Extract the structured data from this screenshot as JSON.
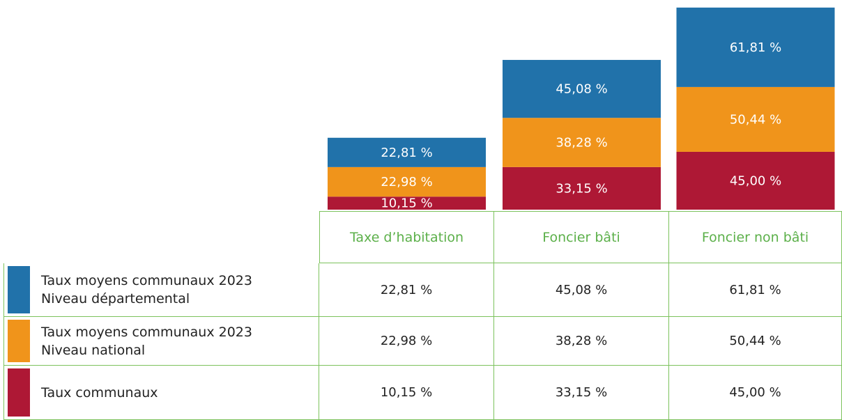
{
  "chart_data": {
    "type": "stacked-bar",
    "categories": [
      "Taxe d’habitation",
      "Foncier bâti",
      "Foncier non bâti"
    ],
    "series": [
      {
        "name": "Taux moyens communaux 2023\nNiveau départemental",
        "color": "#2172aa",
        "values": [
          22.81,
          45.08,
          61.81
        ],
        "value_labels": [
          "22,81 %",
          "45,08 %",
          "61,81 %"
        ]
      },
      {
        "name": "Taux moyens communaux 2023\nNiveau national",
        "color": "#f0941b",
        "values": [
          22.98,
          38.28,
          50.44
        ],
        "value_labels": [
          "22,98 %",
          "38,28 %",
          "50,44 %"
        ]
      },
      {
        "name": "Taux communaux",
        "color": "#ae1835",
        "values": [
          10.15,
          33.15,
          45.0
        ],
        "value_labels": [
          "10,15 %",
          "33,15 %",
          "45,00 %"
        ]
      }
    ]
  }
}
